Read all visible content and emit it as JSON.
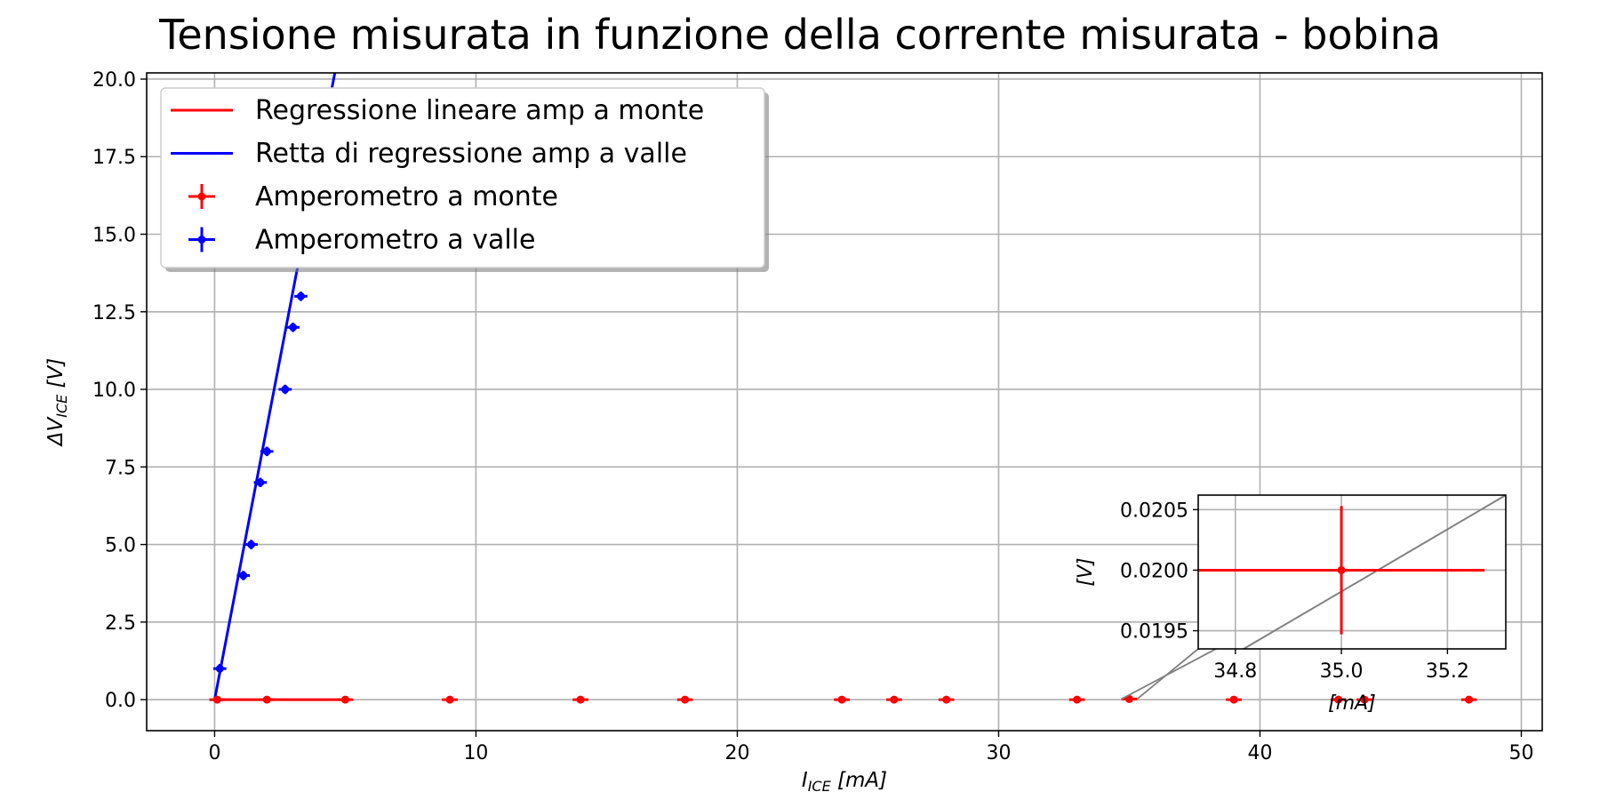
{
  "chart_data": {
    "type": "scatter",
    "title": "Tensione misurata in funzione della corrente misurata - bobina",
    "xlabel": {
      "main": "I",
      "sub": "ICE",
      "unit": " [mA]"
    },
    "ylabel": {
      "main": "ΔV",
      "sub": "ICE",
      "unit": " [V]"
    },
    "xlim": [
      -2.6,
      50.8
    ],
    "ylim": [
      -1.0,
      20.2
    ],
    "xticks": [
      0,
      10,
      20,
      30,
      40,
      50
    ],
    "yticks": [
      0.0,
      2.5,
      5.0,
      7.5,
      10.0,
      12.5,
      15.0,
      17.5,
      20.0
    ],
    "grid": true,
    "legend_position": "upper left",
    "colors": {
      "monte": "#ff0000",
      "valle": "#0000ff",
      "grid": "#b0b0b0",
      "connector": "#808080"
    },
    "series": [
      {
        "name": "Amperometro a monte",
        "kind": "errorbar",
        "color": "#ff0000",
        "x": [
          0.1,
          2.0,
          5.0,
          9.0,
          14.0,
          18.0,
          24.0,
          26.0,
          28.0,
          33.0,
          35.0,
          39.0,
          43.0,
          44.0,
          48.0
        ],
        "y": [
          0.0,
          0.0,
          0.0,
          0.0,
          0.0,
          0.0,
          0.0,
          0.0,
          0.0,
          0.0,
          0.02,
          0.0,
          0.0,
          0.0,
          0.0
        ],
        "xerr": 0.3,
        "yerr": 0.05
      },
      {
        "name": "Amperometro a valle",
        "kind": "errorbar",
        "color": "#0000ff",
        "x": [
          0.2,
          1.1,
          1.4,
          1.75,
          2.0,
          2.7,
          3.0,
          3.3
        ],
        "y": [
          1.0,
          4.0,
          5.0,
          7.0,
          8.0,
          10.0,
          12.0,
          13.0
        ],
        "xerr": 0.25,
        "yerr": 0.15
      },
      {
        "name": "Regressione lineare amp a monte",
        "kind": "line",
        "color": "#ff0000",
        "x": [
          0.0,
          5.0
        ],
        "y": [
          0.0,
          0.0
        ]
      },
      {
        "name": "Retta di regressione amp a valle",
        "kind": "line",
        "color": "#0000ff",
        "x": [
          0.0,
          4.6
        ],
        "y": [
          0.0,
          20.2
        ]
      }
    ],
    "legend": [
      {
        "label": "Regressione lineare amp a monte",
        "style": "line",
        "color": "#ff0000"
      },
      {
        "label": "Retta di regressione amp a valle",
        "style": "line",
        "color": "#0000ff"
      },
      {
        "label": "Amperometro a monte",
        "style": "errorbar",
        "color": "#ff0000"
      },
      {
        "label": "Amperometro a valle",
        "style": "errorbar",
        "color": "#0000ff"
      }
    ],
    "inset": {
      "xlim": [
        34.73,
        35.31
      ],
      "ylim": [
        0.01935,
        0.02062
      ],
      "xticks": [
        34.8,
        35.0,
        35.2
      ],
      "yticks": [
        0.0195,
        0.02,
        0.0205
      ],
      "xticklabels": [
        "34.8",
        "35.0",
        "35.2"
      ],
      "yticklabels": [
        "0.0195",
        "0.0200",
        "0.0205"
      ],
      "xlabel": "[mA]",
      "ylabel": "[V]",
      "point": {
        "x": 35.0,
        "y": 0.02,
        "xerr": 0.27,
        "yerr": 0.00053
      },
      "regression_line": {
        "x": [
          34.73,
          35.31
        ],
        "y": [
          0.01913,
          0.02062
        ]
      }
    }
  }
}
